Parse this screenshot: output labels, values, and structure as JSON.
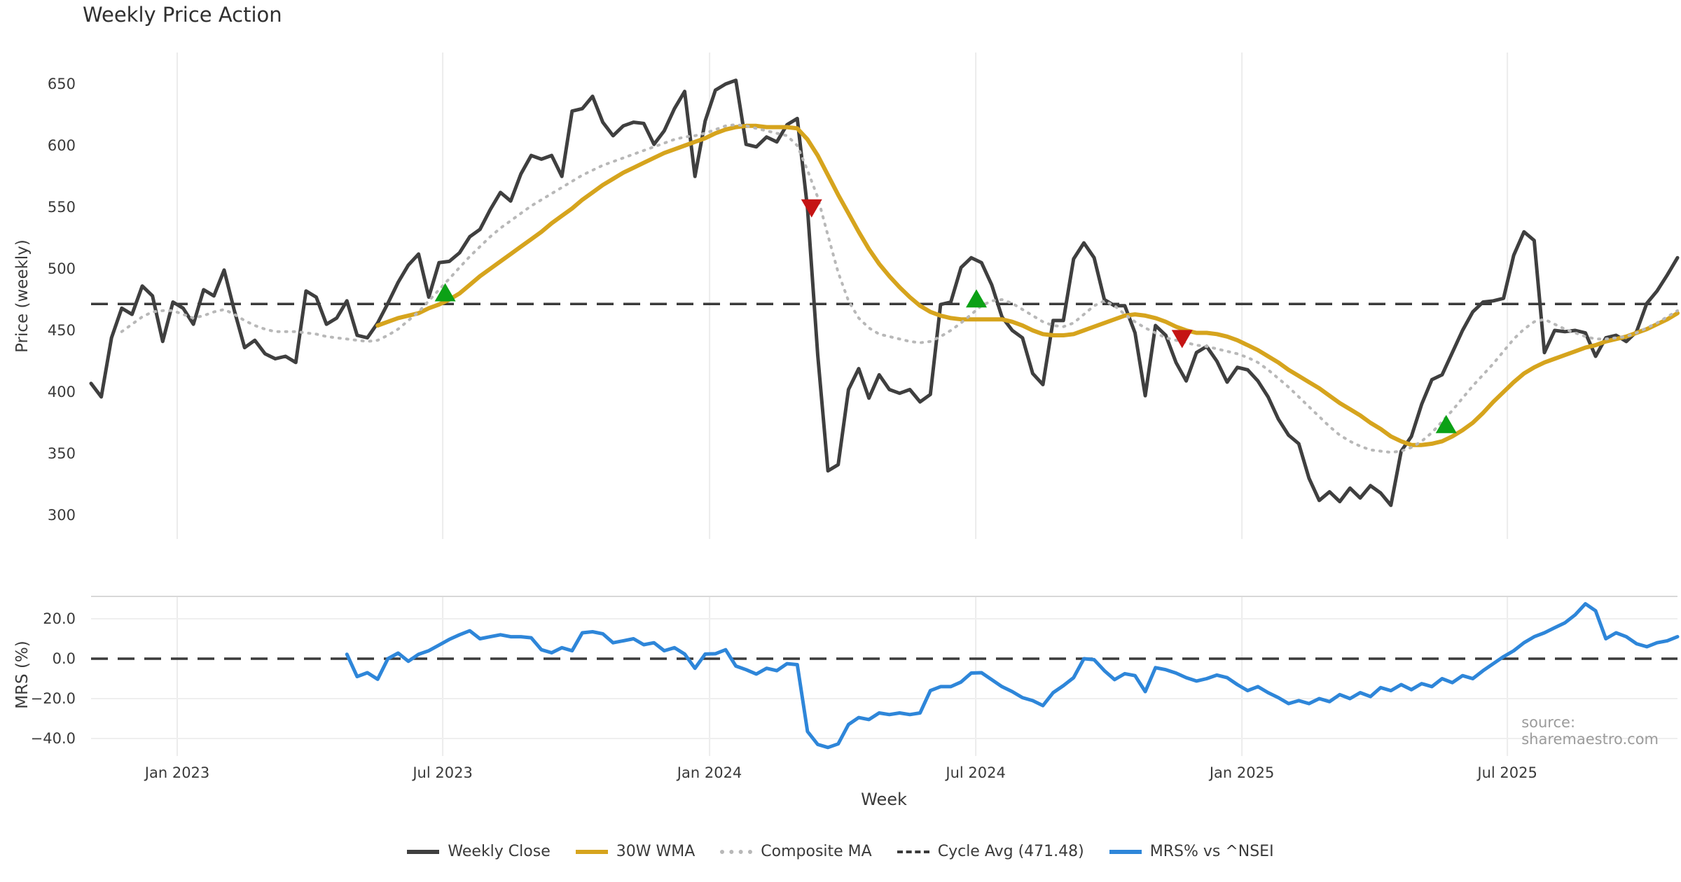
{
  "title": "Weekly Price Action",
  "source": "source: sharemaestro.com",
  "colors": {
    "close": "#3f3f3f",
    "wma": "#d6a41d",
    "composite": "#b8b8b8",
    "cycle": "#3a3a3a",
    "mrs": "#2e86d9",
    "buy": "#0ca116",
    "sell": "#c51414",
    "grid": "#ececec",
    "panel_border": "#d8d8d8"
  },
  "x_axis": {
    "label": "Week",
    "total_weeks": 155,
    "ticks": [
      {
        "label": "Jan 2023",
        "week": 8.42
      },
      {
        "label": "Jul 2023",
        "week": 34.36
      },
      {
        "label": "Jan 2024",
        "week": 60.43
      },
      {
        "label": "Jul 2024",
        "week": 86.44
      },
      {
        "label": "Jan 2025",
        "week": 112.44
      },
      {
        "label": "Jul 2025",
        "week": 138.38
      }
    ]
  },
  "price_panel": {
    "axis_label": "Price (weekly)",
    "yticks": [
      650,
      600,
      550,
      500,
      450,
      400,
      350,
      300
    ],
    "ylim": [
      278,
      676
    ],
    "cycle_avg": 471.48
  },
  "mrs_panel": {
    "axis_label": "MRS (%)",
    "yticks": [
      {
        "label": "20.0",
        "value": 20
      },
      {
        "label": "0.0",
        "value": 0
      },
      {
        "label": "−20.0",
        "value": -20
      },
      {
        "label": "−40.0",
        "value": -40
      }
    ],
    "ylim": [
      -48,
      31
    ],
    "zero_line": 0
  },
  "legend": {
    "items": [
      {
        "label": "Weekly Close",
        "style": "solid",
        "color": "#3f3f3f"
      },
      {
        "label": "30W WMA",
        "style": "solid",
        "color": "#d6a41d"
      },
      {
        "label": "Composite MA",
        "style": "dotted",
        "color": "#b8b8b8"
      },
      {
        "label": "Cycle Avg (471.48)",
        "style": "dashed",
        "color": "#3a3a3a"
      },
      {
        "label": "MRS% vs ^NSEI",
        "style": "solid",
        "color": "#2e86d9"
      }
    ]
  },
  "chart_data": [
    {
      "type": "line",
      "panel": "price",
      "title": "Weekly Price Action",
      "ylabel": "Price (weekly)",
      "ylim": [
        278,
        676
      ],
      "grid": "vertical",
      "series": [
        {
          "name": "Weekly Close",
          "style": "solid",
          "width": 5,
          "color": "#3f3f3f",
          "start_week": 0,
          "values": [
            407,
            396,
            444,
            468,
            463,
            486,
            478,
            441,
            473,
            468,
            455,
            483,
            478,
            499,
            466,
            436,
            442,
            431,
            427,
            429,
            424,
            482,
            477,
            455,
            460,
            474,
            446,
            444,
            456,
            472,
            489,
            503,
            512,
            477,
            505,
            506,
            513,
            526,
            532,
            548,
            562,
            555,
            577,
            592,
            589,
            592,
            575,
            628,
            630,
            640,
            619,
            608,
            616,
            619,
            618,
            601,
            612,
            630,
            644,
            575,
            620,
            645,
            650,
            653,
            601,
            599,
            607,
            603,
            617,
            622,
            549,
            430,
            336,
            341,
            402,
            419,
            395,
            414,
            402,
            399,
            402,
            392,
            398,
            471,
            473,
            501,
            509,
            505,
            487,
            461,
            450,
            444,
            415,
            406,
            458,
            458,
            508,
            521,
            509,
            475,
            470,
            470,
            448,
            397,
            454,
            446,
            424,
            409,
            432,
            437,
            425,
            408,
            420,
            418,
            409,
            396,
            378,
            365,
            358,
            330,
            312,
            319,
            311,
            322,
            314,
            324,
            318,
            308,
            352,
            364,
            390,
            410,
            414,
            432,
            450,
            465,
            473,
            474,
            476,
            511,
            530,
            523,
            432,
            450,
            449,
            450,
            448,
            429,
            444,
            446,
            441,
            449,
            472,
            482,
            495,
            509
          ]
        },
        {
          "name": "30W WMA",
          "style": "solid",
          "width": 6,
          "color": "#d6a41d",
          "start_week": 28,
          "values": [
            454,
            457,
            460,
            462,
            464,
            468,
            471,
            475,
            480,
            487,
            494,
            500,
            506,
            512,
            518,
            524,
            530,
            537,
            543,
            549,
            556,
            562,
            568,
            573,
            578,
            582,
            586,
            590,
            594,
            597,
            600,
            603,
            606,
            610,
            613,
            615,
            616,
            616,
            615,
            615,
            615,
            614,
            605,
            592,
            576,
            560,
            545,
            530,
            516,
            504,
            494,
            485,
            477,
            470,
            465,
            462,
            460,
            459,
            459,
            459,
            459,
            459,
            457,
            454,
            450,
            447,
            446,
            446,
            447,
            450,
            453,
            456,
            459,
            462,
            463,
            462,
            460,
            457,
            453,
            450,
            448,
            448,
            447,
            445,
            442,
            438,
            434,
            429,
            424,
            418,
            413,
            408,
            403,
            397,
            391,
            386,
            381,
            375,
            370,
            364,
            360,
            357,
            357,
            358,
            360,
            364,
            369,
            375,
            383,
            392,
            400,
            408,
            415,
            420,
            424,
            427,
            430,
            433,
            436,
            438,
            441,
            443,
            445,
            448,
            451,
            455,
            459,
            464
          ]
        },
        {
          "name": "Composite MA",
          "style": "dotted",
          "width": 4,
          "color": "#b8b8b8",
          "start_week": 3,
          "values": [
            449,
            455,
            461,
            465,
            466,
            466,
            463,
            460,
            462,
            465,
            467,
            463,
            458,
            454,
            451,
            449,
            449,
            449,
            448,
            447,
            445,
            444,
            443,
            442,
            441,
            442,
            446,
            451,
            458,
            465,
            474,
            483,
            492,
            501,
            510,
            518,
            526,
            533,
            539,
            545,
            551,
            556,
            561,
            566,
            571,
            576,
            580,
            584,
            587,
            590,
            593,
            596,
            599,
            602,
            605,
            607,
            608,
            610,
            613,
            616,
            617,
            616,
            614,
            612,
            610,
            608,
            600,
            580,
            558,
            527,
            497,
            474,
            460,
            452,
            447,
            445,
            443,
            441,
            440,
            441,
            445,
            450,
            456,
            463,
            470,
            474,
            475,
            472,
            467,
            462,
            457,
            454,
            453,
            456,
            463,
            470,
            474,
            470,
            463,
            457,
            452,
            448,
            444,
            442,
            440,
            438,
            437,
            435,
            433,
            431,
            428,
            424,
            418,
            411,
            404,
            396,
            388,
            380,
            372,
            365,
            360,
            356,
            353,
            352,
            351,
            352,
            355,
            360,
            367,
            376,
            385,
            395,
            405,
            414,
            423,
            433,
            443,
            451,
            457,
            459,
            455,
            451,
            448,
            445,
            443,
            443,
            444,
            445,
            448,
            452,
            456,
            461,
            466
          ]
        }
      ],
      "cycle_avg": 471.48,
      "markers": [
        {
          "type": "buy",
          "week": 34.6,
          "value": 481
        },
        {
          "type": "sell",
          "week": 70.4,
          "value": 549
        },
        {
          "type": "buy",
          "week": 86.5,
          "value": 476
        },
        {
          "type": "sell",
          "week": 106.6,
          "value": 443
        },
        {
          "type": "buy",
          "week": 132.4,
          "value": 374
        }
      ]
    },
    {
      "type": "line",
      "panel": "mrs",
      "ylabel": "MRS (%)",
      "ylim": [
        -48,
        31
      ],
      "zero_line": 0,
      "series": [
        {
          "name": "MRS% vs ^NSEI",
          "style": "solid",
          "width": 5,
          "color": "#2e86d9",
          "start_week": 25,
          "values": [
            2.2,
            -9,
            -7,
            -10.3,
            0,
            2.8,
            -1.3,
            2.2,
            4,
            6.8,
            9.7,
            12,
            14,
            10,
            11,
            12,
            11,
            11,
            10.5,
            4.5,
            3,
            5.5,
            4,
            13,
            13.5,
            12.5,
            8,
            9,
            10,
            7,
            8,
            4,
            5.5,
            2.3,
            -4.8,
            2.3,
            2.5,
            4.5,
            -3.7,
            -5.5,
            -7.7,
            -4.8,
            -6,
            -2.5,
            -3,
            -36.5,
            -43,
            -44.5,
            -42.7,
            -33,
            -29.5,
            -30.5,
            -27.2,
            -28,
            -27.2,
            -28,
            -27.2,
            -16,
            -14,
            -14,
            -11.7,
            -7.2,
            -7,
            -10.5,
            -14,
            -16.5,
            -19.5,
            -21,
            -23.5,
            -17,
            -13.5,
            -9.5,
            0,
            -0.5,
            -6,
            -10.5,
            -7.5,
            -8.5,
            -16.5,
            -4.5,
            -5.5,
            -7.2,
            -9.5,
            -11.2,
            -10,
            -8.2,
            -9.5,
            -13,
            -16,
            -14,
            -17,
            -19.5,
            -22.5,
            -21,
            -22.5,
            -20,
            -21.5,
            -18,
            -20,
            -17,
            -19,
            -14.5,
            -16,
            -13,
            -15.5,
            -12.5,
            -14,
            -10,
            -12,
            -8.5,
            -10,
            -6,
            -2.5,
            1,
            4,
            8,
            11,
            13,
            15.5,
            18,
            22,
            27.5,
            24,
            10,
            13,
            11,
            7.5,
            6,
            8,
            9,
            11
          ]
        }
      ]
    }
  ]
}
